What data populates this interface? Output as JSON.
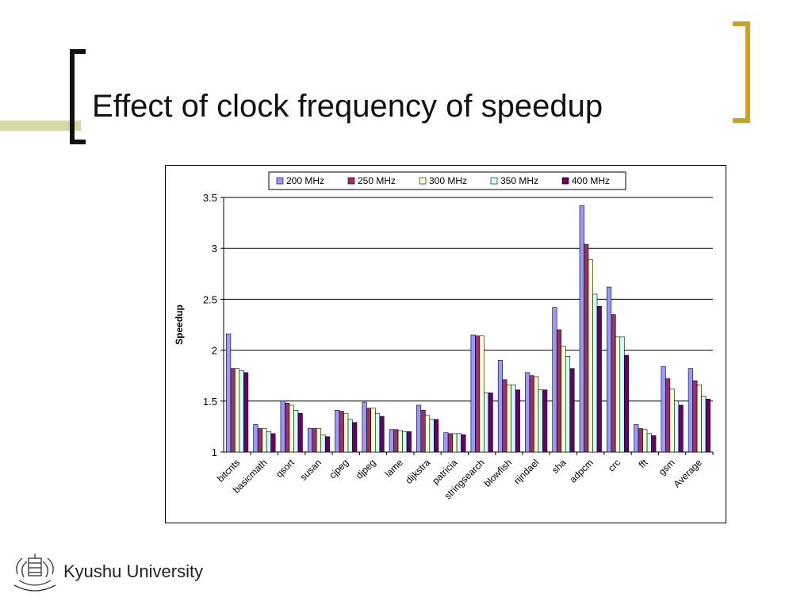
{
  "slide": {
    "title": "Effect of clock frequency of speedup",
    "footer_text": "Kyushu University"
  },
  "colors": {
    "title": "#111111",
    "bracket_left": "#111111",
    "bracket_right": "#c9a227",
    "deco_bar": "#d6d9a6"
  },
  "chart_data": {
    "type": "bar",
    "title": "",
    "xlabel": "",
    "ylabel": "Speedup",
    "ylim": [
      1,
      3.5
    ],
    "yticks": [
      "1",
      "1.5",
      "2",
      "2.5",
      "3",
      "3.5"
    ],
    "grid": true,
    "legend_position": "top",
    "categories": [
      "bitcnts",
      "basicmath",
      "qsort",
      "susan",
      "cjpeg",
      "djpeg",
      "lame",
      "dijkstra",
      "patricia",
      "stringsearch",
      "blowfish",
      "rijndael",
      "sha",
      "adpcm",
      "crc",
      "fft",
      "gsm",
      "Average"
    ],
    "series": [
      {
        "name": "200 MHz",
        "color": "#9999ff",
        "values": [
          2.16,
          1.27,
          1.5,
          1.23,
          1.41,
          1.49,
          1.22,
          1.46,
          1.19,
          2.15,
          1.9,
          1.78,
          2.42,
          3.42,
          2.62,
          1.27,
          1.84,
          1.82
        ]
      },
      {
        "name": "250 MHz",
        "color": "#993366",
        "values": [
          1.82,
          1.23,
          1.48,
          1.23,
          1.4,
          1.43,
          1.22,
          1.41,
          1.18,
          2.14,
          1.71,
          1.75,
          2.2,
          3.04,
          2.35,
          1.23,
          1.72,
          1.7
        ]
      },
      {
        "name": "300 MHz",
        "color": "#ffffcc",
        "values": [
          1.82,
          1.23,
          1.46,
          1.23,
          1.38,
          1.43,
          1.21,
          1.36,
          1.18,
          2.14,
          1.66,
          1.74,
          2.04,
          2.89,
          2.13,
          1.22,
          1.62,
          1.66
        ]
      },
      {
        "name": "350 MHz",
        "color": "#ccffff",
        "values": [
          1.8,
          1.2,
          1.41,
          1.17,
          1.32,
          1.38,
          1.2,
          1.32,
          1.18,
          1.58,
          1.66,
          1.61,
          1.94,
          2.55,
          2.13,
          1.18,
          1.5,
          1.55
        ]
      },
      {
        "name": "400 MHz",
        "color": "#660066",
        "values": [
          1.78,
          1.18,
          1.38,
          1.15,
          1.29,
          1.35,
          1.2,
          1.32,
          1.17,
          1.58,
          1.61,
          1.61,
          1.82,
          2.43,
          1.95,
          1.16,
          1.46,
          1.52
        ]
      }
    ]
  }
}
